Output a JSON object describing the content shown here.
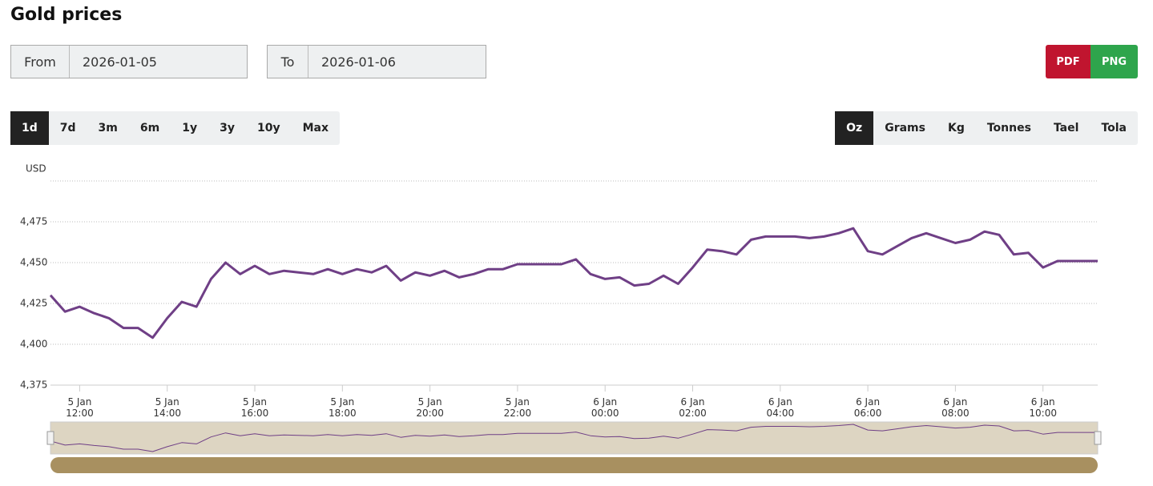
{
  "header": {
    "title": "Gold prices"
  },
  "date_range": {
    "from_label": "From",
    "from_value": "2026-01-05",
    "to_label": "To",
    "to_value": "2026-01-06"
  },
  "export": [
    "PDF",
    "PNG"
  ],
  "periods": {
    "options": [
      "1d",
      "7d",
      "3m",
      "6m",
      "1y",
      "3y",
      "10y",
      "Max"
    ],
    "active": 0
  },
  "units": {
    "options": [
      "Oz",
      "Grams",
      "Kg",
      "Tonnes",
      "Tael",
      "Tola"
    ],
    "active": 0
  },
  "chart_data": {
    "type": "line",
    "y_label": "USD",
    "color": "#6f3f86",
    "grid": true,
    "ylim": [
      4375,
      4500
    ],
    "yticks": [
      {
        "value": 4375,
        "label": "4,375"
      },
      {
        "value": 4400,
        "label": "4,400"
      },
      {
        "value": 4425,
        "label": "4,425"
      },
      {
        "value": 4450,
        "label": "4,450"
      },
      {
        "value": 4475,
        "label": "4,475"
      }
    ],
    "xlim": [
      "2026-01-05T11:20",
      "2026-01-06T11:15"
    ],
    "xticks": [
      {
        "value": "2026-01-05T12:00",
        "label": "5 Jan\n12:00"
      },
      {
        "value": "2026-01-05T14:00",
        "label": "5 Jan\n14:00"
      },
      {
        "value": "2026-01-05T16:00",
        "label": "5 Jan\n16:00"
      },
      {
        "value": "2026-01-05T18:00",
        "label": "5 Jan\n18:00"
      },
      {
        "value": "2026-01-05T20:00",
        "label": "5 Jan\n20:00"
      },
      {
        "value": "2026-01-05T22:00",
        "label": "5 Jan\n22:00"
      },
      {
        "value": "2026-01-06T00:00",
        "label": "6 Jan\n00:00"
      },
      {
        "value": "2026-01-06T02:00",
        "label": "6 Jan\n02:00"
      },
      {
        "value": "2026-01-06T04:00",
        "label": "6 Jan\n04:00"
      },
      {
        "value": "2026-01-06T06:00",
        "label": "6 Jan\n06:00"
      },
      {
        "value": "2026-01-06T08:00",
        "label": "6 Jan\n08:00"
      },
      {
        "value": "2026-01-06T10:00",
        "label": "6 Jan\n10:00"
      }
    ],
    "x": [
      "2026-01-05T11:20",
      "2026-01-05T11:40",
      "2026-01-05T12:00",
      "2026-01-05T12:20",
      "2026-01-05T12:40",
      "2026-01-05T13:00",
      "2026-01-05T13:20",
      "2026-01-05T13:40",
      "2026-01-05T14:00",
      "2026-01-05T14:20",
      "2026-01-05T14:40",
      "2026-01-05T15:00",
      "2026-01-05T15:20",
      "2026-01-05T15:40",
      "2026-01-05T16:00",
      "2026-01-05T16:20",
      "2026-01-05T16:40",
      "2026-01-05T17:00",
      "2026-01-05T17:20",
      "2026-01-05T17:40",
      "2026-01-05T18:00",
      "2026-01-05T18:20",
      "2026-01-05T18:40",
      "2026-01-05T19:00",
      "2026-01-05T19:20",
      "2026-01-05T19:40",
      "2026-01-05T20:00",
      "2026-01-05T20:20",
      "2026-01-05T20:40",
      "2026-01-05T21:00",
      "2026-01-05T21:20",
      "2026-01-05T21:40",
      "2026-01-05T22:00",
      "2026-01-05T22:20",
      "2026-01-05T22:40",
      "2026-01-05T23:00",
      "2026-01-05T23:20",
      "2026-01-05T23:40",
      "2026-01-06T00:00",
      "2026-01-06T00:20",
      "2026-01-06T00:40",
      "2026-01-06T01:00",
      "2026-01-06T01:20",
      "2026-01-06T01:40",
      "2026-01-06T02:00",
      "2026-01-06T02:20",
      "2026-01-06T02:40",
      "2026-01-06T03:00",
      "2026-01-06T03:20",
      "2026-01-06T03:40",
      "2026-01-06T04:00",
      "2026-01-06T04:20",
      "2026-01-06T04:40",
      "2026-01-06T05:00",
      "2026-01-06T05:20",
      "2026-01-06T05:40",
      "2026-01-06T06:00",
      "2026-01-06T06:20",
      "2026-01-06T06:40",
      "2026-01-06T07:00",
      "2026-01-06T07:20",
      "2026-01-06T07:40",
      "2026-01-06T08:00",
      "2026-01-06T08:20",
      "2026-01-06T08:40",
      "2026-01-06T09:00",
      "2026-01-06T09:20",
      "2026-01-06T09:40",
      "2026-01-06T10:00",
      "2026-01-06T10:20",
      "2026-01-06T10:40",
      "2026-01-06T11:00",
      "2026-01-06T11:15"
    ],
    "values": [
      4430,
      4420,
      4423,
      4419,
      4416,
      4410,
      4410,
      4404,
      4416,
      4426,
      4423,
      4440,
      4450,
      4443,
      4448,
      4443,
      4445,
      4444,
      4443,
      4446,
      4443,
      4446,
      4444,
      4448,
      4439,
      4444,
      4442,
      4445,
      4441,
      4443,
      4446,
      4446,
      4449,
      4449,
      4449,
      4449,
      4452,
      4443,
      4440,
      4441,
      4436,
      4437,
      4442,
      4437,
      4447,
      4458,
      4457,
      4455,
      4464,
      4466,
      4466,
      4466,
      4465,
      4466,
      4468,
      4471,
      4457,
      4455,
      4460,
      4465,
      4468,
      4465,
      4462,
      4464,
      4469,
      4467,
      4455,
      4456,
      4447,
      4451,
      4451,
      4451,
      4451
    ]
  }
}
